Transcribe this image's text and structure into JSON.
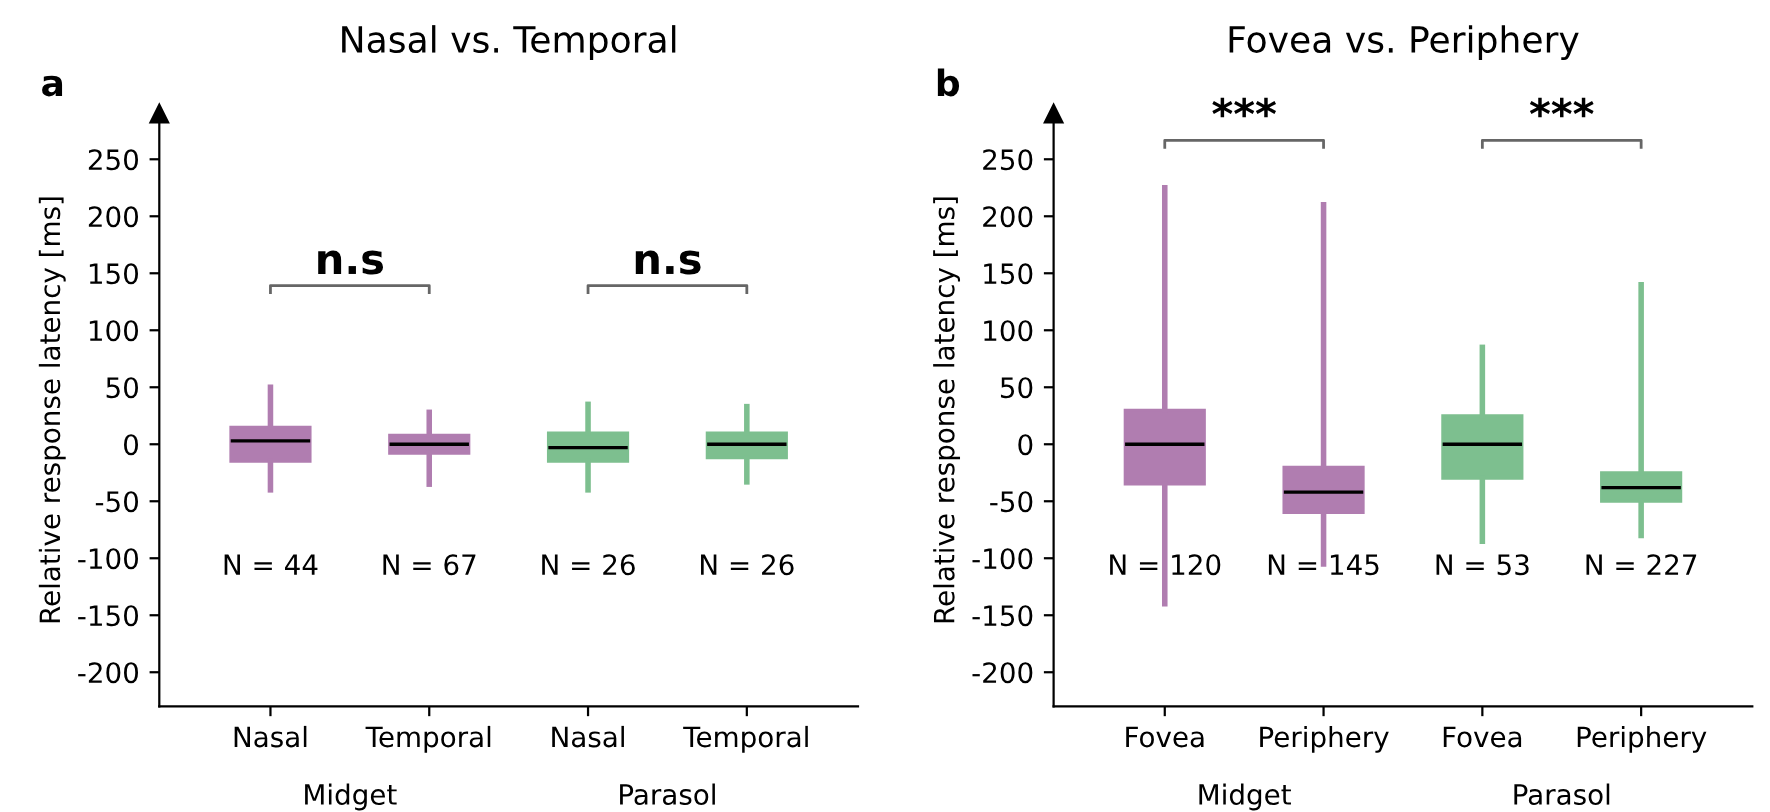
{
  "chart_data": [
    {
      "type": "box",
      "title": "Nasal vs. Temporal",
      "ylabel": "Relative response latency [ms]",
      "categories": [
        "Nasal",
        "Temporal",
        "Nasal",
        "Temporal"
      ],
      "colors": [
        "#b07db0",
        "#b07db0",
        "#7dbf8f",
        "#7dbf8f"
      ],
      "boxes": [
        {
          "low": -40,
          "q1": -15,
          "median": 3,
          "q3": 15,
          "high": 50
        },
        {
          "low": -35,
          "q1": -8,
          "median": 0,
          "q3": 8,
          "high": 28
        },
        {
          "low": -40,
          "q1": -15,
          "median": -3,
          "q3": 10,
          "high": 35
        },
        {
          "low": -33,
          "q1": -12,
          "median": 0,
          "q3": 10,
          "high": 33
        }
      ],
      "ylim": [
        -230,
        290
      ],
      "yticks": [
        -200,
        -150,
        -100,
        -50,
        0,
        50,
        100,
        150,
        200,
        250
      ],
      "annotations": [
        "a",
        "Midget",
        "Parasol",
        "n.s",
        "n.s",
        "N = 44",
        "N = 67",
        "N = 26",
        "N = 26"
      ]
    },
    {
      "type": "box",
      "title": "Fovea vs. Periphery",
      "ylabel": "Relative response latency [ms]",
      "categories": [
        "Fovea",
        "Periphery",
        "Fovea",
        "Periphery"
      ],
      "colors": [
        "#b07db0",
        "#b07db0",
        "#7dbf8f",
        "#7dbf8f"
      ],
      "boxes": [
        {
          "low": -140,
          "q1": -35,
          "median": 0,
          "q3": 30,
          "high": 225
        },
        {
          "low": -105,
          "q1": -60,
          "median": -42,
          "q3": -20,
          "high": 210
        },
        {
          "low": -85,
          "q1": -30,
          "median": 0,
          "q3": 25,
          "high": 85
        },
        {
          "low": -80,
          "q1": -50,
          "median": -38,
          "q3": -25,
          "high": 140
        }
      ],
      "ylim": [
        -230,
        290
      ],
      "yticks": [
        -200,
        -150,
        -100,
        -50,
        0,
        50,
        100,
        150,
        200,
        250
      ],
      "annotations": [
        "b",
        "Midget",
        "Parasol",
        "***",
        "***",
        "N = 120",
        "N = 145",
        "N = 53",
        "N = 227"
      ]
    }
  ]
}
